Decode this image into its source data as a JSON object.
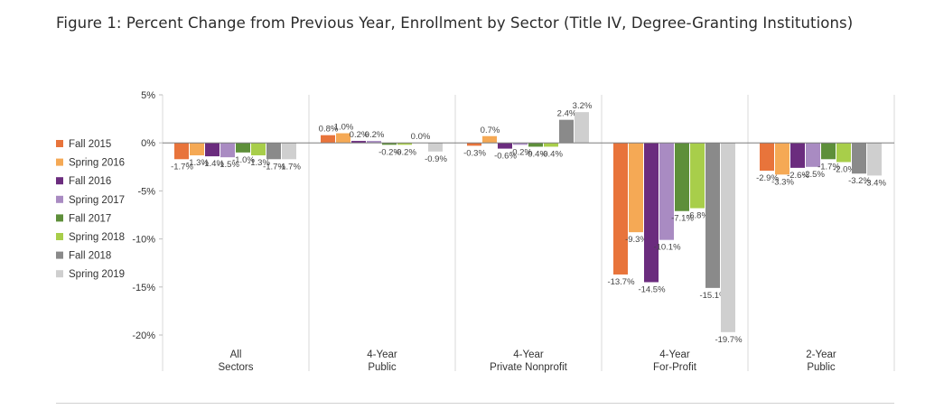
{
  "title": "Figure 1: Percent Change from Previous Year, Enrollment by Sector (Title IV, Degree-Granting Institutions)",
  "chart_data": {
    "type": "bar",
    "title": "Figure 1: Percent Change from Previous Year, Enrollment by Sector (Title IV, Degree-Granting Institutions)",
    "xlabel": "",
    "ylabel": "",
    "ylim": [
      -20,
      5
    ],
    "yticks": [
      5,
      0,
      -5,
      -10,
      -15,
      -20
    ],
    "ytick_labels": [
      "5%",
      "0%",
      "-5%",
      "-10%",
      "-15%",
      "-20%"
    ],
    "value_suffix": "%",
    "legend_position": "left",
    "categories": [
      [
        "All",
        "Sectors"
      ],
      [
        "4-Year",
        "Public"
      ],
      [
        "4-Year",
        "Private Nonprofit"
      ],
      [
        "4-Year",
        "For-Profit"
      ],
      [
        "2-Year",
        "Public"
      ]
    ],
    "series": [
      {
        "name": "Fall 2015",
        "color": "#E8743B",
        "values": [
          -1.7,
          0.8,
          -0.3,
          -13.7,
          -2.9
        ]
      },
      {
        "name": "Spring 2016",
        "color": "#F5A955",
        "values": [
          -1.3,
          1.0,
          0.7,
          -9.3,
          -3.3
        ]
      },
      {
        "name": "Fall 2016",
        "color": "#6B2C7E",
        "values": [
          -1.4,
          0.2,
          -0.6,
          -14.5,
          -2.6
        ]
      },
      {
        "name": "Spring 2017",
        "color": "#A98BC2",
        "values": [
          -1.5,
          0.2,
          -0.2,
          -10.1,
          -2.5
        ]
      },
      {
        "name": "Fall 2017",
        "color": "#5E8F3A",
        "values": [
          -1.0,
          -0.2,
          -0.4,
          -7.1,
          -1.7
        ]
      },
      {
        "name": "Spring 2018",
        "color": "#A8CE4A",
        "values": [
          -1.3,
          -0.2,
          -0.4,
          -6.8,
          -2.0
        ]
      },
      {
        "name": "Fall 2018",
        "color": "#8A8A8A",
        "values": [
          -1.7,
          0.0,
          2.4,
          -15.1,
          -3.2
        ]
      },
      {
        "name": "Spring 2019",
        "color": "#CFCFCF",
        "values": [
          -1.7,
          -0.9,
          3.2,
          -19.7,
          -3.4
        ]
      }
    ]
  }
}
